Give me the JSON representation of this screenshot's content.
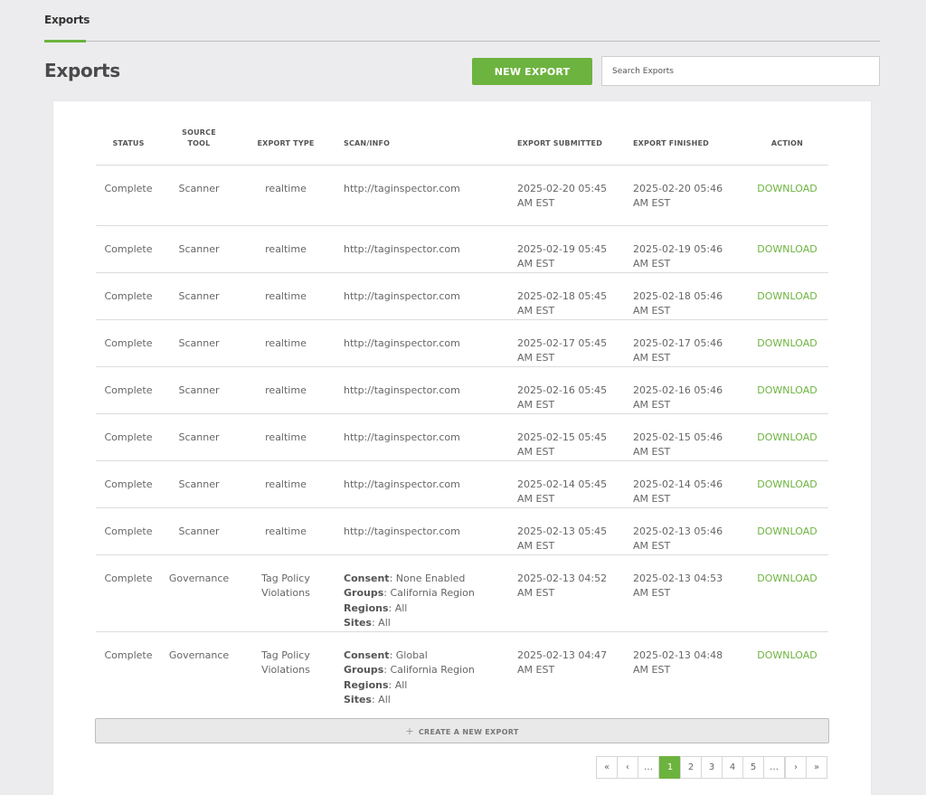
{
  "tabs": [
    {
      "label": "Exports",
      "active": true
    }
  ],
  "page_title": "Exports",
  "new_export_label": "NEW EXPORT",
  "search": {
    "placeholder": "Search Exports",
    "value": ""
  },
  "table": {
    "headers": {
      "status": "STATUS",
      "source_line1": "SOURCE",
      "source_line2": "TOOL",
      "type": "EXPORT TYPE",
      "info": "SCAN/INFO",
      "submitted": "EXPORT SUBMITTED",
      "finished": "EXPORT FINISHED",
      "action": "ACTION"
    },
    "rows": [
      {
        "status": "Complete",
        "source": "Scanner",
        "type": [
          "realtime"
        ],
        "info_url": "http://taginspector.com",
        "submitted": [
          "2025-02-20 05:45",
          "AM EST"
        ],
        "finished": [
          "2025-02-20 05:46",
          "AM EST"
        ],
        "action": "DOWNLOAD"
      },
      {
        "status": "Complete",
        "source": "Scanner",
        "type": [
          "realtime"
        ],
        "info_url": "http://taginspector.com",
        "submitted": [
          "2025-02-19 05:45",
          "AM EST"
        ],
        "finished": [
          "2025-02-19 05:46",
          "AM EST"
        ],
        "action": "DOWNLOAD"
      },
      {
        "status": "Complete",
        "source": "Scanner",
        "type": [
          "realtime"
        ],
        "info_url": "http://taginspector.com",
        "submitted": [
          "2025-02-18 05:45",
          "AM EST"
        ],
        "finished": [
          "2025-02-18 05:46",
          "AM EST"
        ],
        "action": "DOWNLOAD"
      },
      {
        "status": "Complete",
        "source": "Scanner",
        "type": [
          "realtime"
        ],
        "info_url": "http://taginspector.com",
        "submitted": [
          "2025-02-17 05:45",
          "AM EST"
        ],
        "finished": [
          "2025-02-17 05:46",
          "AM EST"
        ],
        "action": "DOWNLOAD"
      },
      {
        "status": "Complete",
        "source": "Scanner",
        "type": [
          "realtime"
        ],
        "info_url": "http://taginspector.com",
        "submitted": [
          "2025-02-16 05:45",
          "AM EST"
        ],
        "finished": [
          "2025-02-16 05:46",
          "AM EST"
        ],
        "action": "DOWNLOAD"
      },
      {
        "status": "Complete",
        "source": "Scanner",
        "type": [
          "realtime"
        ],
        "info_url": "http://taginspector.com",
        "submitted": [
          "2025-02-15 05:45",
          "AM EST"
        ],
        "finished": [
          "2025-02-15 05:46",
          "AM EST"
        ],
        "action": "DOWNLOAD"
      },
      {
        "status": "Complete",
        "source": "Scanner",
        "type": [
          "realtime"
        ],
        "info_url": "http://taginspector.com",
        "submitted": [
          "2025-02-14 05:45",
          "AM EST"
        ],
        "finished": [
          "2025-02-14 05:46",
          "AM EST"
        ],
        "action": "DOWNLOAD"
      },
      {
        "status": "Complete",
        "source": "Scanner",
        "type": [
          "realtime"
        ],
        "info_url": "http://taginspector.com",
        "submitted": [
          "2025-02-13 05:45",
          "AM EST"
        ],
        "finished": [
          "2025-02-13 05:46",
          "AM EST"
        ],
        "action": "DOWNLOAD"
      },
      {
        "status": "Complete",
        "source": "Governance",
        "type": [
          "Tag Policy",
          "Violations"
        ],
        "info_fields": [
          {
            "label": "Consent",
            "value": ": None Enabled"
          },
          {
            "label": "Groups",
            "value": ": California Region"
          },
          {
            "label": "Regions",
            "value": ": All"
          },
          {
            "label": "Sites",
            "value": ": All"
          }
        ],
        "submitted": [
          "2025-02-13 04:52",
          "AM EST"
        ],
        "finished": [
          "2025-02-13 04:53",
          "AM EST"
        ],
        "action": "DOWNLOAD"
      },
      {
        "status": "Complete",
        "source": "Governance",
        "type": [
          "Tag Policy",
          "Violations"
        ],
        "info_fields": [
          {
            "label": "Consent",
            "value": ": Global"
          },
          {
            "label": "Groups",
            "value": ": California Region"
          },
          {
            "label": "Regions",
            "value": ": All"
          },
          {
            "label": "Sites",
            "value": ": All"
          }
        ],
        "submitted": [
          "2025-02-13 04:47",
          "AM EST"
        ],
        "finished": [
          "2025-02-13 04:48",
          "AM EST"
        ],
        "action": "DOWNLOAD"
      }
    ]
  },
  "create_new_export": {
    "icon": "plus-icon",
    "label": "CREATE A NEW EXPORT"
  },
  "pagination": {
    "items": [
      "«",
      "‹",
      "…",
      "1",
      "2",
      "3",
      "4",
      "5",
      "…",
      "›",
      "»"
    ],
    "active": "1"
  },
  "colors": {
    "accent": "#6db33f",
    "background": "#ececee"
  }
}
